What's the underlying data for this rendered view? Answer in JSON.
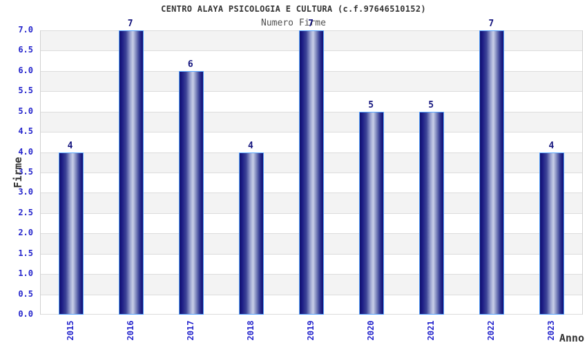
{
  "chart_data": {
    "type": "bar",
    "title": "CENTRO ALAYA PSICOLOGIA E CULTURA (c.f.97646510152)",
    "subtitle": "Numero Firme",
    "xlabel": "Anno",
    "ylabel": "Firme",
    "categories": [
      "2015",
      "2016",
      "2017",
      "2018",
      "2019",
      "2020",
      "2021",
      "2022",
      "2023"
    ],
    "values": [
      4,
      7,
      6,
      4,
      7,
      5,
      5,
      7,
      4
    ],
    "value_labels": [
      "4",
      "7",
      "6",
      "4",
      "7",
      "5",
      "5",
      "7",
      "4"
    ],
    "ylim": [
      0.0,
      7.0
    ],
    "ytick_step": 0.5,
    "ytick_labels": [
      "0.0",
      "0.5",
      "1.0",
      "1.5",
      "2.0",
      "2.5",
      "3.0",
      "3.5",
      "4.0",
      "4.5",
      "5.0",
      "5.5",
      "6.0",
      "6.5",
      "7.0"
    ],
    "grid": true,
    "legend": "none",
    "band_pattern": "alternating horizontal 0.5-unit bands, gray on odd intervals"
  },
  "colors": {
    "title": "#333333",
    "subtitle": "#4f4f4f",
    "axis_label": "#333333",
    "tick_label": "#2424cc",
    "value_label": "#15157e",
    "band": "#f3f3f3",
    "gridline": "#dcdcdc",
    "plot_border": "#d0d0d0",
    "bar_border": "#58a6ff",
    "bar_dark": "#10106e",
    "bar_mid": "#1b1b84",
    "bar_light": "#c9cfe8",
    "background": "#ffffff"
  }
}
